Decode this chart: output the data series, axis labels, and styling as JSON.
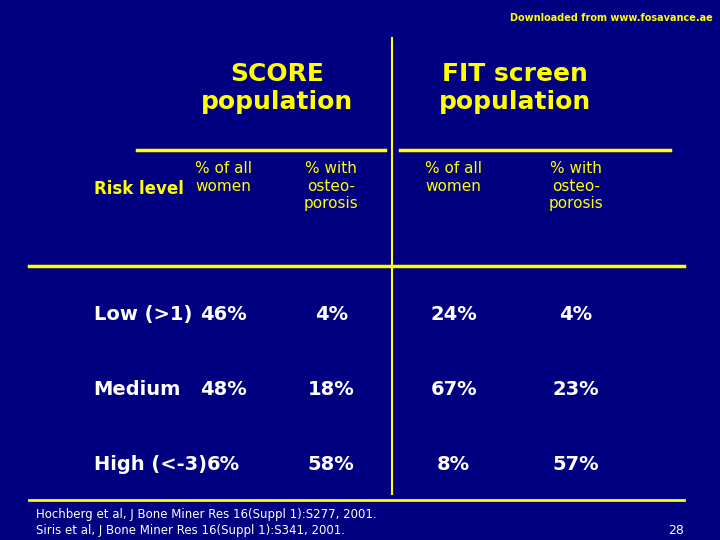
{
  "background_color": "#000080",
  "title_watermark": "Downloaded from www.fosavance.ae",
  "watermark_color": "#FFFF00",
  "watermark_url_color": "#FFFF00",
  "header1": "SCORE\npopulation",
  "header2": "FIT screen\npopulation",
  "col_headers": [
    "% of all\nwomen",
    "% with\nosteo-\nporosis",
    "% of all\nwomen",
    "% with\nosteo-\nporosis"
  ],
  "row_header": "Risk level",
  "row_labels": [
    "Low (>1)",
    "Medium",
    "High (<-3)"
  ],
  "data": [
    [
      "46%",
      "4%",
      "24%",
      "4%"
    ],
    [
      "48%",
      "18%",
      "67%",
      "23%"
    ],
    [
      "6%",
      "58%",
      "8%",
      "57%"
    ]
  ],
  "yellow_color": "#FFFF00",
  "white_color": "#FFFFFF",
  "line_color": "#FFFF00",
  "footer_line1": "Hochberg et al, J Bone Miner Res 16(Suppl 1):S277, 2001.",
  "footer_line2": "Siris et al, J Bone Miner Res 16(Suppl 1):S341, 2001.",
  "page_number": "28"
}
